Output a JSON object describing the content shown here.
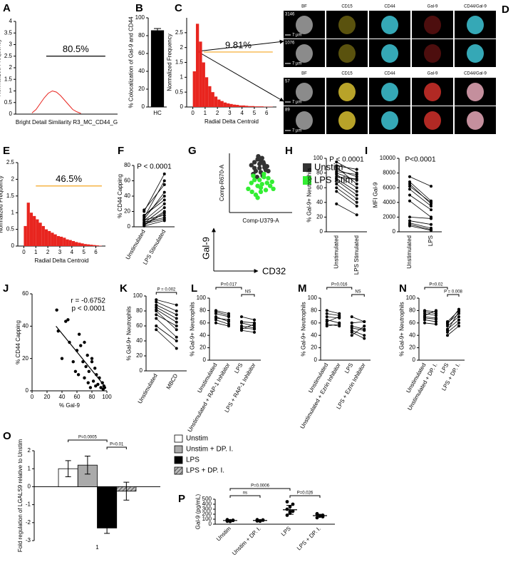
{
  "image_panel": {
    "panel": "D",
    "groups": [
      {
        "columns": [
          "BF",
          "CD15",
          "CD44",
          "Gal-9",
          "CD44/Gal-9"
        ],
        "cells": [
          "3146",
          "1076"
        ]
      },
      {
        "columns": [
          "BF",
          "CD15",
          "CD44",
          "Gal-9",
          "CD44/Gal-9"
        ],
        "cells": [
          "57",
          "89"
        ]
      }
    ],
    "scale_bar": "7 µm"
  },
  "chart_data": [
    {
      "panel": "A",
      "type": "line",
      "x": [
        0.8,
        1.0,
        1.2,
        1.4,
        1.6,
        1.8,
        2.0,
        2.2,
        2.4,
        2.6,
        2.8,
        3.0,
        3.2
      ],
      "values": [
        0.05,
        0.2,
        0.45,
        0.7,
        0.9,
        1.0,
        0.95,
        0.8,
        0.6,
        0.4,
        0.2,
        0.1,
        0.03
      ],
      "color": "#e8251f",
      "xlim": [
        0,
        5
      ],
      "ylim": [
        0,
        4
      ],
      "yticks": [
        0,
        0.5,
        1,
        1.5,
        2,
        2.5,
        3,
        3.5,
        4
      ],
      "xlabel": "Bright Detail Similarity R3_MC_CD44_G",
      "ylabel": "Normalized Frequency",
      "gate": {
        "x": [
          1.5,
          4.4
        ],
        "y": 2.5,
        "color": "#000000"
      },
      "annotation": "80.5%"
    },
    {
      "panel": "B",
      "type": "bar",
      "categories": [
        "HC"
      ],
      "values": [
        86
      ],
      "errors": [
        2
      ],
      "color": "#000000",
      "ylim": [
        0,
        100
      ],
      "yticks": [
        0,
        20,
        40,
        60,
        80,
        100
      ],
      "ylabel": "% Colocalization of Gal-9 and CD44"
    },
    {
      "panel": "C",
      "type": "histogram",
      "bins": [
        0,
        0.25,
        0.5,
        0.75,
        1,
        1.25,
        1.5,
        1.75,
        2,
        2.25,
        2.5,
        2.75,
        3,
        3.25,
        3.5,
        3.75,
        4,
        4.25,
        4.5,
        4.75,
        5,
        5.25,
        5.5,
        5.75,
        6,
        6.25,
        6.5
      ],
      "values": [
        1.2,
        2.8,
        2.2,
        1.5,
        1.0,
        0.7,
        0.5,
        0.35,
        0.25,
        0.2,
        0.15,
        0.12,
        0.1,
        0.08,
        0.07,
        0.05,
        0.05,
        0.04,
        0.03,
        0.03,
        0.02,
        0.02,
        0.02,
        0.01,
        0.01,
        0.01
      ],
      "color": "#e8251f",
      "xlim": [
        -0.5,
        6.8
      ],
      "xticks": [
        0,
        1,
        2,
        3,
        4,
        5,
        6
      ],
      "ylim": [
        0,
        3
      ],
      "yticks": [
        0,
        0.5,
        1,
        1.5,
        2,
        2.5
      ],
      "xlabel": "Radial Delta Centroid",
      "ylabel": "Normalized Frequency",
      "gate": {
        "x": [
          0.9,
          6.5
        ],
        "y": 1.85,
        "color": "#f5a623"
      },
      "annotation": "9.81%"
    },
    {
      "panel": "E",
      "type": "histogram",
      "bins": [
        0,
        0.25,
        0.5,
        0.75,
        1,
        1.25,
        1.5,
        1.75,
        2,
        2.25,
        2.5,
        2.75,
        3,
        3.25,
        3.5,
        3.75,
        4,
        4.25,
        4.5,
        4.75,
        5,
        5.25,
        5.5,
        5.75,
        6,
        6.25,
        6.5
      ],
      "values": [
        0.6,
        1.3,
        1.0,
        0.9,
        0.8,
        0.7,
        0.6,
        0.5,
        0.45,
        0.4,
        0.35,
        0.3,
        0.28,
        0.25,
        0.2,
        0.18,
        0.15,
        0.12,
        0.1,
        0.08,
        0.06,
        0.05,
        0.04,
        0.03,
        0.02,
        0.01
      ],
      "color": "#e8251f",
      "xlim": [
        -0.5,
        6.8
      ],
      "xticks": [
        0,
        1,
        2,
        3,
        4,
        5,
        6
      ],
      "ylim": [
        0,
        2.5
      ],
      "yticks": [
        0,
        0.5,
        1,
        1.5,
        2,
        2.5
      ],
      "xlabel": "Radial Delta Centroid",
      "ylabel": "Normalized Frequency",
      "gate": {
        "x": [
          1,
          6.5
        ],
        "y": 1.8,
        "color": "#f5a623"
      },
      "annotation": "46.5%"
    },
    {
      "panel": "F",
      "type": "paired",
      "categories": [
        "Unstimulated",
        "LPS Stimulated"
      ],
      "values": [
        [
          2,
          18
        ],
        [
          5,
          25
        ],
        [
          8,
          30
        ],
        [
          10,
          45
        ],
        [
          12,
          60
        ],
        [
          3,
          20
        ],
        [
          15,
          35
        ],
        [
          20,
          69
        ],
        [
          6,
          12
        ],
        [
          1,
          8
        ],
        [
          14,
          40
        ],
        [
          4,
          10
        ],
        [
          22,
          55
        ],
        [
          9,
          15
        ]
      ],
      "color": "#000000",
      "ylim": [
        0,
        80
      ],
      "yticks": [
        0,
        20,
        40,
        60,
        80
      ],
      "ylabel": "% CD44 Capping",
      "annotation": "P < 0.0001"
    },
    {
      "panel": "G",
      "type": "scatter",
      "xlim": [
        0,
        100
      ],
      "ylim": [
        0,
        100
      ],
      "xlabel": "Comp-U379-A",
      "ylabel": "Comp-R670-A",
      "axis_arrows": {
        "y": "Gal-9",
        "x": "CD32"
      },
      "series": [
        {
          "name": "Unstim",
          "color": "#333333",
          "x": [
            35,
            40,
            45,
            50,
            55,
            60,
            42,
            48,
            52,
            58,
            38,
            46,
            54,
            62,
            44,
            50,
            56,
            40,
            48,
            53
          ],
          "values": [
            80,
            85,
            90,
            88,
            82,
            78,
            70,
            75,
            92,
            72,
            65,
            95,
            85,
            70,
            60,
            68,
            76,
            75,
            82,
            62
          ]
        },
        {
          "name": "LPS Stim",
          "color": "#33ee33",
          "x": [
            30,
            35,
            40,
            45,
            50,
            55,
            60,
            65,
            70,
            38,
            42,
            48,
            52,
            58,
            62,
            45,
            55,
            36,
            50,
            68
          ],
          "values": [
            40,
            50,
            55,
            45,
            35,
            60,
            50,
            45,
            40,
            62,
            30,
            55,
            48,
            38,
            58,
            25,
            65,
            35,
            42,
            52
          ]
        }
      ]
    },
    {
      "panel": "H",
      "type": "paired",
      "categories": [
        "Unstimulated",
        "LPS Stimulated"
      ],
      "values": [
        [
          95,
          80
        ],
        [
          90,
          85
        ],
        [
          85,
          75
        ],
        [
          80,
          70
        ],
        [
          78,
          60
        ],
        [
          75,
          72
        ],
        [
          72,
          55
        ],
        [
          70,
          50
        ],
        [
          65,
          45
        ],
        [
          60,
          40
        ],
        [
          55,
          35
        ],
        [
          38,
          23
        ],
        [
          88,
          65
        ],
        [
          82,
          78
        ]
      ],
      "color": "#000000",
      "ylim": [
        0,
        100
      ],
      "yticks": [
        0,
        20,
        40,
        60,
        80,
        100
      ],
      "ylabel": "% Gal-9+ Neutrophils",
      "annotation": "P < 0.0001"
    },
    {
      "panel": "I",
      "type": "paired",
      "categories": [
        "Unstimulated",
        "LPS"
      ],
      "values": [
        [
          7500,
          6200
        ],
        [
          6800,
          4200
        ],
        [
          6500,
          3800
        ],
        [
          6200,
          4000
        ],
        [
          5800,
          3500
        ],
        [
          5000,
          3000
        ],
        [
          4200,
          2000
        ],
        [
          2000,
          1800
        ],
        [
          1500,
          1000
        ],
        [
          1200,
          500
        ],
        [
          1000,
          300
        ],
        [
          800,
          200
        ]
      ],
      "color": "#000000",
      "ylim": [
        0,
        10000
      ],
      "yticks": [
        0,
        2000,
        4000,
        6000,
        8000,
        10000
      ],
      "ylabel": "MFI Gal-9",
      "annotation": "P<0.0001"
    },
    {
      "panel": "J",
      "type": "scatter",
      "x": [
        33,
        35,
        40,
        45,
        48,
        50,
        55,
        58,
        60,
        62,
        65,
        68,
        70,
        72,
        74,
        75,
        76,
        78,
        80,
        82,
        84,
        85,
        86,
        88,
        90,
        92,
        94,
        95,
        96,
        97,
        70,
        63,
        80
      ],
      "values": [
        50,
        37,
        20,
        43,
        44,
        30,
        18,
        12,
        25,
        10,
        28,
        18,
        8,
        15,
        22,
        5,
        12,
        2,
        20,
        6,
        14,
        3,
        10,
        4,
        8,
        2,
        5,
        1,
        3,
        2,
        30,
        35,
        18
      ],
      "color": "#000000",
      "xlim": [
        0,
        100
      ],
      "xticks": [
        0,
        20,
        40,
        60,
        80,
        100
      ],
      "ylim": [
        0,
        60
      ],
      "yticks": [
        0,
        20,
        40,
        60
      ],
      "xlabel": "% Gal-9",
      "ylabel": "% CD44 Capping",
      "fit": {
        "x": [
          32,
          97
        ],
        "y": [
          40,
          3
        ]
      },
      "annotations": [
        "r = -0.6752",
        "p < 0.0001"
      ]
    },
    {
      "panel": "K",
      "type": "paired",
      "categories": [
        "Unstimulated",
        "MBCD"
      ],
      "values": [
        [
          95,
          88
        ],
        [
          92,
          80
        ],
        [
          88,
          75
        ],
        [
          85,
          70
        ],
        [
          82,
          65
        ],
        [
          80,
          55
        ],
        [
          75,
          60
        ],
        [
          70,
          45
        ],
        [
          60,
          40
        ],
        [
          55,
          30
        ]
      ],
      "color": "#000000",
      "ylim": [
        0,
        100
      ],
      "yticks": [
        0,
        20,
        40,
        60,
        80,
        100
      ],
      "ylabel": "% Gal-9+ Neutrophils",
      "brackets": [
        {
          "from": 0,
          "to": 1,
          "label": "P = 0.002"
        }
      ]
    },
    {
      "panel": "L",
      "type": "paired",
      "categories": [
        "Unstimulated",
        "Unstimulated + RAP-1 Inhibitor",
        "LPS",
        "LPS + RAP-1 Inhibitor"
      ],
      "values": [
        [
          75,
          70,
          60,
          55
        ],
        [
          80,
          75,
          70,
          65
        ],
        [
          70,
          62,
          55,
          52
        ],
        [
          65,
          58,
          48,
          45
        ],
        [
          60,
          55,
          50,
          58
        ],
        [
          78,
          72,
          62,
          60
        ],
        [
          68,
          65,
          52,
          50
        ]
      ],
      "color": "#000000",
      "ylim": [
        0,
        100
      ],
      "yticks": [
        0,
        20,
        40,
        60,
        80,
        100
      ],
      "ylabel": "% Gal-9+ Neutrophils",
      "brackets": [
        {
          "from": 0,
          "to": 2,
          "label": "P=0.017"
        },
        {
          "from": 2,
          "to": 3,
          "label": "NS"
        }
      ]
    },
    {
      "panel": "M",
      "type": "paired",
      "categories": [
        "Unstimulated",
        "Unstimulated + Ezrin Inhibitor",
        "LPS",
        "LPS + Ezrin Inhibitor"
      ],
      "values": [
        [
          75,
          72,
          60,
          62
        ],
        [
          70,
          68,
          55,
          50
        ],
        [
          65,
          60,
          48,
          40
        ],
        [
          58,
          55,
          45,
          35
        ],
        [
          80,
          75,
          70,
          62
        ],
        [
          62,
          70,
          40,
          55
        ],
        [
          55,
          58,
          52,
          48
        ]
      ],
      "color": "#000000",
      "ylim": [
        0,
        100
      ],
      "yticks": [
        0,
        20,
        40,
        60,
        80,
        100
      ],
      "ylabel": "% Gal-9+ Neutrophils",
      "brackets": [
        {
          "from": 0,
          "to": 2,
          "label": "P=0.016"
        },
        {
          "from": 2,
          "to": 3,
          "label": "NS"
        }
      ]
    },
    {
      "panel": "N",
      "type": "paired",
      "categories": [
        "Unstimulated",
        "Unstimulated + DP. I.",
        "LPS",
        "LPS + DP. I."
      ],
      "values": [
        [
          80,
          78,
          60,
          75
        ],
        [
          75,
          72,
          55,
          70
        ],
        [
          70,
          68,
          45,
          60
        ],
        [
          65,
          62,
          48,
          78
        ],
        [
          60,
          58,
          40,
          55
        ],
        [
          78,
          75,
          62,
          80
        ],
        [
          68,
          66,
          50,
          65
        ],
        [
          72,
          80,
          58,
          82
        ]
      ],
      "color": "#000000",
      "ylim": [
        0,
        100
      ],
      "yticks": [
        0,
        20,
        40,
        60,
        80,
        100
      ],
      "ylabel": "% Gal-9+ Neutrophils",
      "brackets": [
        {
          "from": 0,
          "to": 2,
          "label": "P=0.02"
        },
        {
          "from": 2,
          "to": 3,
          "label": "P = 0.008"
        }
      ]
    },
    {
      "panel": "O",
      "type": "grouped-bar",
      "categories": [
        "1"
      ],
      "ylim": [
        -3,
        2
      ],
      "yticks": [
        -3,
        -2,
        -1,
        0,
        1,
        2
      ],
      "ylabel": "Fold regulation of LGALS9 relative to Unstim",
      "series": [
        {
          "name": "Unstim",
          "color": "#ffffff",
          "values": [
            1.0
          ],
          "errors": [
            0.45
          ]
        },
        {
          "name": "Unstim + DP. I.",
          "color": "#aaaaaa",
          "values": [
            1.2
          ],
          "errors": [
            0.5
          ]
        },
        {
          "name": "LPS",
          "color": "#000000",
          "values": [
            -2.3
          ],
          "errors": [
            0.3
          ]
        },
        {
          "name": "LPS + DP. I.",
          "color": "#777777",
          "pattern": "hatch",
          "values": [
            -0.25
          ],
          "errors": [
            0.5
          ]
        }
      ],
      "brackets": [
        {
          "from": 0,
          "to": 2,
          "label": "P=0.0005"
        },
        {
          "from": 2,
          "to": 3,
          "label": "P=0.01"
        }
      ]
    },
    {
      "panel": "P",
      "type": "dot",
      "categories": [
        "Unstim",
        "Unstim + DP. I.",
        "LPS",
        "LPS + DP. I."
      ],
      "values": [
        [
          60,
          70,
          80,
          90,
          55,
          75,
          85
        ],
        [
          65,
          70,
          85,
          75,
          60,
          80,
          90
        ],
        [
          180,
          220,
          260,
          300,
          350,
          400,
          450,
          250
        ],
        [
          130,
          160,
          180,
          200,
          170,
          150,
          210
        ]
      ],
      "means": [
        74,
        75,
        289,
        171
      ],
      "errors": [
        13,
        11,
        90,
        27
      ],
      "color": "#000000",
      "ylim": [
        0,
        500
      ],
      "yticks": [
        0,
        100,
        200,
        300,
        400,
        500
      ],
      "ylabel": "Gal-9 (pg/mL)",
      "brackets": [
        {
          "from": 0,
          "to": 1,
          "label": "ns"
        },
        {
          "from": 0,
          "to": 2,
          "label": "P=0.0006"
        },
        {
          "from": 2,
          "to": 3,
          "label": "P=0.026"
        }
      ]
    }
  ]
}
